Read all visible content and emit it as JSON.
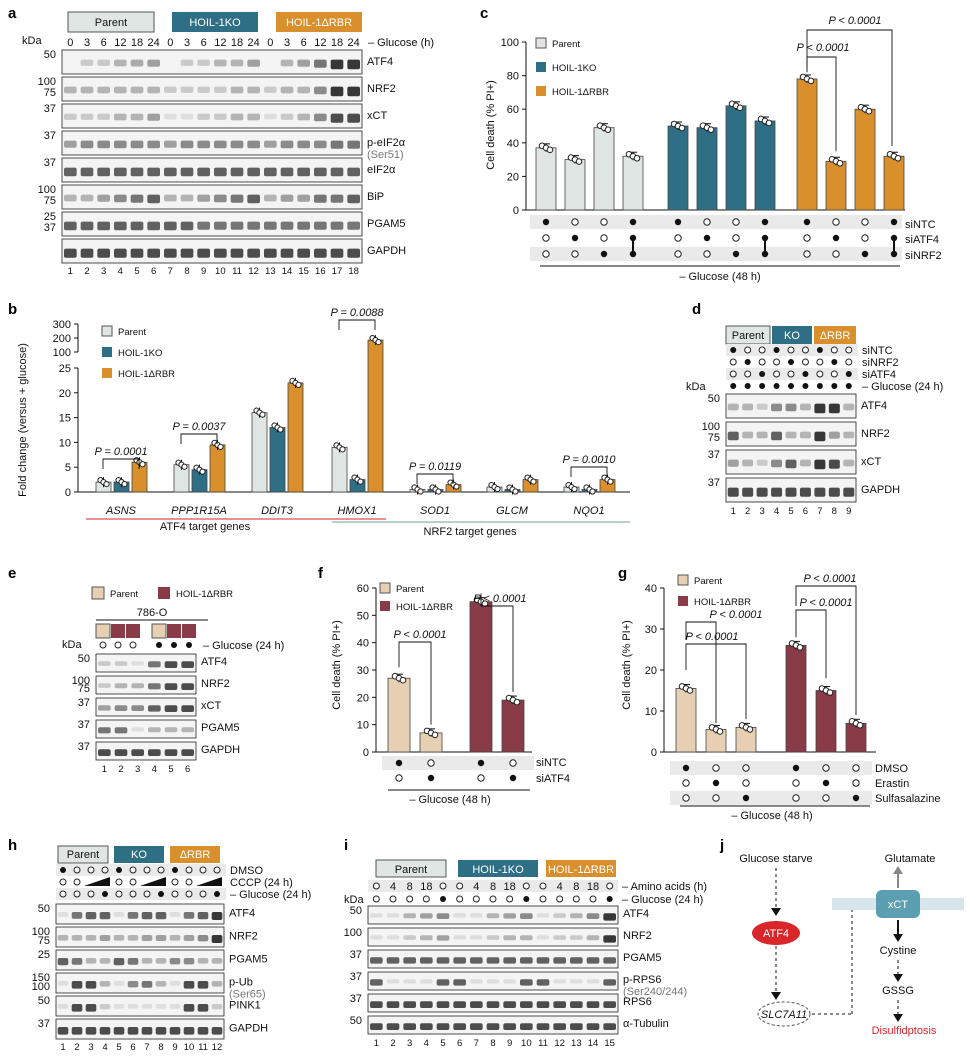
{
  "colors": {
    "parent_a": "#dfe6e4",
    "ko": "#2f6f86",
    "rbr": "#d9902c",
    "parent_f": "#e6cfb2",
    "rbr_f": "#8a3b48",
    "atf4": "#d9262b",
    "xct": "#5b9fb0"
  },
  "panel_a": {
    "letter": "a",
    "kda": "kDa",
    "groups": [
      "Parent",
      "HOIL-1KO",
      "HOIL-1ΔRBR"
    ],
    "group_super": [
      "",
      "KO",
      "ΔRBR"
    ],
    "times": [
      "0",
      "3",
      "6",
      "12",
      "18",
      "24",
      "0",
      "3",
      "6",
      "12",
      "18",
      "24",
      "0",
      "3",
      "6",
      "12",
      "18",
      "24"
    ],
    "time_label": "– Glucose (h)",
    "blots": [
      {
        "label": "ATF4",
        "mw": [
          "50"
        ]
      },
      {
        "label": "NRF2",
        "mw": [
          "100",
          "75"
        ]
      },
      {
        "label": "xCT",
        "mw": [
          "37"
        ]
      },
      {
        "label": "p-eIF2α",
        "sub": "(Ser51)",
        "mw": [
          "37"
        ]
      },
      {
        "label": "eIF2α",
        "mw": [
          "37"
        ]
      },
      {
        "label": "BiP",
        "mw": [
          "100",
          "75"
        ]
      },
      {
        "label": "PGAM5",
        "mw": [
          "25",
          "37"
        ]
      },
      {
        "label": "GAPDH",
        "mw": []
      }
    ],
    "lanes": [
      "1",
      "2",
      "3",
      "4",
      "5",
      "6",
      "7",
      "8",
      "9",
      "10",
      "11",
      "12",
      "13",
      "14",
      "15",
      "16",
      "17",
      "18"
    ]
  },
  "panel_c": {
    "letter": "c",
    "ylabel": "Cell death (% PI+)",
    "legend": [
      "Parent",
      "HOIL-1KO",
      "HOIL-1ΔRBR"
    ],
    "pvals": [
      "P < 0.0001",
      "P < 0.0001"
    ],
    "rows": [
      "siNTC",
      "siATF4",
      "siNRF2"
    ],
    "footer": "– Glucose (48 h)"
  },
  "panel_b": {
    "letter": "b",
    "ylabel": "Fold change (versus + glucose)",
    "legend": [
      "Parent",
      "HOIL-1KO",
      "HOIL-1ΔRBR"
    ],
    "genes": [
      "ASNS",
      "PPP1R15A",
      "DDIT3",
      "HMOX1",
      "SOD1",
      "GLCM",
      "NQO1"
    ],
    "pvals": [
      "P = 0.0001",
      "P = 0.0037",
      "P = 0.0088",
      "P = 0.0119",
      "P = 0.0010"
    ],
    "groups": [
      "ATF4 target genes",
      "NRF2 target genes"
    ]
  },
  "panel_d": {
    "letter": "d",
    "groups": [
      "Parent",
      "KO",
      "ΔRBR"
    ],
    "rows": [
      "siNTC",
      "siNRF2",
      "siATF4",
      "– Glucose (24 h)"
    ],
    "blots": [
      {
        "label": "ATF4",
        "mw": [
          "50"
        ]
      },
      {
        "label": "NRF2",
        "mw": [
          "100",
          "75"
        ]
      },
      {
        "label": "xCT",
        "mw": [
          "37"
        ]
      },
      {
        "label": "GAPDH",
        "mw": [
          "37"
        ]
      }
    ],
    "lanes": [
      "1",
      "2",
      "3",
      "4",
      "5",
      "6",
      "7",
      "8",
      "9"
    ],
    "kda": "kDa"
  },
  "panel_e": {
    "letter": "e",
    "legend": [
      "Parent",
      "HOIL-1ΔRBR"
    ],
    "cell": "786-O",
    "kda": "kDa",
    "row": "– Glucose (24 h)",
    "blots": [
      {
        "label": "ATF4",
        "mw": [
          "50"
        ]
      },
      {
        "label": "NRF2",
        "mw": [
          "100",
          "75"
        ]
      },
      {
        "label": "xCT",
        "mw": [
          "37"
        ]
      },
      {
        "label": "PGAM5",
        "mw": [
          "37"
        ]
      },
      {
        "label": "GAPDH",
        "mw": [
          "37"
        ]
      }
    ],
    "lanes": [
      "1",
      "2",
      "3",
      "4",
      "5",
      "6"
    ]
  },
  "panel_f": {
    "letter": "f",
    "ylabel": "Cell death (% PI+)",
    "legend": [
      "Parent",
      "HOIL-1ΔRBR"
    ],
    "pvals": [
      "P < 0.0001",
      "P < 0.0001"
    ],
    "rows": [
      "siNTC",
      "siATF4"
    ],
    "footer": "– Glucose (48 h)"
  },
  "panel_g": {
    "letter": "g",
    "ylabel": "Cell death (% PI+)",
    "legend": [
      "Parent",
      "HOIL-1ΔRBR"
    ],
    "pvals": [
      "P < 0.0001",
      "P < 0.0001",
      "P < 0.0001",
      "P < 0.0001"
    ],
    "rows": [
      "DMSO",
      "Erastin",
      "Sulfasalazine"
    ],
    "footer": "– Glucose (48 h)"
  },
  "panel_h": {
    "letter": "h",
    "groups": [
      "Parent",
      "KO",
      "ΔRBR"
    ],
    "rows": [
      "DMSO",
      "CCCP (24 h)",
      "– Glucose (24 h)"
    ],
    "blots": [
      {
        "label": "ATF4",
        "mw": [
          "50"
        ]
      },
      {
        "label": "NRF2",
        "mw": [
          "100",
          "75"
        ]
      },
      {
        "label": "PGAM5",
        "mw": [
          "25"
        ]
      },
      {
        "label": "p-Ub",
        "sub": "(Ser65)",
        "mw": [
          "150",
          "100"
        ]
      },
      {
        "label": "PINK1",
        "mw": [
          "50"
        ]
      },
      {
        "label": "GAPDH",
        "mw": [
          "37"
        ]
      }
    ],
    "lanes": [
      "1",
      "2",
      "3",
      "4",
      "5",
      "6",
      "7",
      "8",
      "9",
      "10",
      "11",
      "12"
    ]
  },
  "panel_i": {
    "letter": "i",
    "groups": [
      "Parent",
      "HOIL-1KO",
      "HOIL-1ΔRBR"
    ],
    "aa": [
      "○",
      "4",
      "8",
      "18",
      "○"
    ],
    "rows": [
      "– Amino acids (h)",
      "– Glucose (24 h)"
    ],
    "kda": "kDa",
    "blots": [
      {
        "label": "ATF4",
        "mw": [
          "50"
        ]
      },
      {
        "label": "NRF2",
        "mw": [
          "100"
        ]
      },
      {
        "label": "PGAM5",
        "mw": [
          "37"
        ]
      },
      {
        "label": "p-RPS6",
        "sub": "(Ser240/244)",
        "mw": [
          "37"
        ]
      },
      {
        "label": "RPS6",
        "mw": [
          "37"
        ]
      },
      {
        "label": "α-Tubulin",
        "mw": [
          "50"
        ]
      }
    ],
    "lanes": [
      "1",
      "2",
      "3",
      "4",
      "5",
      "6",
      "7",
      "8",
      "9",
      "10",
      "11",
      "12",
      "13",
      "14",
      "15"
    ]
  },
  "panel_j": {
    "letter": "j",
    "glucose": "Glucose starve",
    "atf4": "ATF4",
    "xct": "xCT",
    "glutamate": "Glutamate",
    "cystine": "Cystine",
    "gssg": "GSSG",
    "slc": "SLC7A11",
    "death": "Disulfidptosis"
  },
  "chart_data": [
    {
      "panel": "c",
      "type": "bar",
      "ylim": [
        0,
        100
      ],
      "yticks": [
        0,
        20,
        40,
        60,
        80,
        100
      ],
      "series": [
        {
          "name": "Parent",
          "values": [
            37,
            30,
            49,
            32
          ]
        },
        {
          "name": "HOIL-1KO",
          "values": [
            50,
            49,
            62,
            53
          ]
        },
        {
          "name": "HOIL-1ΔRBR",
          "values": [
            78,
            29,
            60,
            32
          ]
        }
      ],
      "conditions": [
        [
          "●",
          "○",
          "○",
          "●"
        ],
        [
          "○",
          "●",
          "○",
          "●"
        ],
        [
          "○",
          "○",
          "●",
          "●"
        ]
      ]
    },
    {
      "panel": "b",
      "type": "bar",
      "yticks_low": [
        0,
        5,
        10,
        15,
        20,
        25
      ],
      "yticks_high": [
        100,
        200,
        300
      ],
      "series": [
        {
          "name": "Parent",
          "values": [
            2,
            5.5,
            16,
            9,
            0.5,
            1,
            1
          ]
        },
        {
          "name": "HOIL-1KO",
          "values": [
            2,
            4.5,
            13,
            2.5,
            0.5,
            0.5,
            0.5
          ]
        },
        {
          "name": "HOIL-1ΔRBR",
          "values": [
            6,
            9.5,
            22,
            185,
            1.5,
            2.5,
            2.5
          ]
        }
      ]
    },
    {
      "panel": "f",
      "type": "bar",
      "ylim": [
        0,
        60
      ],
      "yticks": [
        0,
        10,
        20,
        30,
        40,
        50,
        60
      ],
      "series": [
        {
          "name": "Parent",
          "values": [
            27,
            7
          ]
        },
        {
          "name": "HOIL-1ΔRBR",
          "values": [
            55,
            19
          ]
        }
      ]
    },
    {
      "panel": "g",
      "type": "bar",
      "ylim": [
        0,
        40
      ],
      "yticks": [
        0,
        10,
        20,
        30,
        40
      ],
      "series": [
        {
          "name": "Parent",
          "values": [
            15.5,
            5.5,
            6
          ]
        },
        {
          "name": "HOIL-1ΔRBR",
          "values": [
            26,
            15,
            7
          ]
        }
      ]
    }
  ]
}
